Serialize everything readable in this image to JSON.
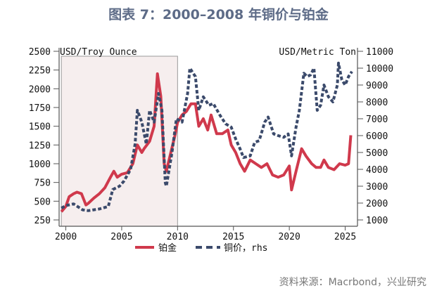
{
  "title": "图表 7：2000–2008 年铜价与铂金",
  "source": "资料来源：Macrbond，兴业研究",
  "chart_data": {
    "type": "line",
    "title": "图表 7：2000–2008 年铜价与铂金",
    "left_axis": {
      "label": "USD/Troy Ounce",
      "range": [
        250,
        2500
      ],
      "ticks": [
        250,
        500,
        750,
        1000,
        1250,
        1500,
        1750,
        2000,
        2250,
        2500
      ]
    },
    "right_axis": {
      "label": "USD/Metric Ton",
      "range": [
        1000,
        11000
      ],
      "ticks": [
        1000,
        2000,
        3000,
        4000,
        5000,
        6000,
        7000,
        8000,
        9000,
        10000,
        11000
      ]
    },
    "x_axis": {
      "range": [
        1999.4,
        2026.1
      ],
      "ticks": [
        2000,
        2005,
        2010,
        2015,
        2020,
        2025
      ]
    },
    "grid": false,
    "legend_position": "bottom",
    "shaded_period": [
      1999.6,
      2010
    ],
    "series": [
      {
        "name": "铂金",
        "axis": "left",
        "color": "#d0394c",
        "style": "solid",
        "x": [
          1999.6,
          2000.0,
          2000.3,
          2000.7,
          2001.0,
          2001.4,
          2001.8,
          2002.0,
          2002.5,
          2003.0,
          2003.5,
          2004.0,
          2004.3,
          2004.6,
          2005.0,
          2005.5,
          2006.0,
          2006.4,
          2006.8,
          2007.0,
          2007.5,
          2007.9,
          2008.2,
          2008.5,
          2008.8,
          2009.0,
          2009.4,
          2009.8,
          2010.0,
          2010.4,
          2010.8,
          2011.2,
          2011.6,
          2011.9,
          2012.3,
          2012.7,
          2013.0,
          2013.5,
          2014.0,
          2014.5,
          2014.8,
          2015.2,
          2015.6,
          2016.0,
          2016.5,
          2017.0,
          2017.5,
          2018.0,
          2018.5,
          2019.0,
          2019.5,
          2020.0,
          2020.2,
          2020.6,
          2021.1,
          2021.5,
          2022.0,
          2022.4,
          2022.8,
          2023.1,
          2023.5,
          2024.0,
          2024.5,
          2025.0,
          2025.3,
          2025.5
        ],
        "values": [
          360,
          430,
          560,
          600,
          620,
          600,
          450,
          470,
          540,
          600,
          680,
          820,
          900,
          820,
          860,
          880,
          1000,
          1250,
          1150,
          1200,
          1300,
          1500,
          2200,
          1900,
          1000,
          900,
          1150,
          1400,
          1550,
          1650,
          1700,
          1800,
          1800,
          1500,
          1600,
          1450,
          1650,
          1400,
          1400,
          1450,
          1250,
          1150,
          1000,
          900,
          1050,
          1000,
          950,
          1000,
          850,
          820,
          850,
          970,
          650,
          900,
          1200,
          1100,
          1000,
          950,
          950,
          1050,
          950,
          920,
          1000,
          980,
          1000,
          1380
        ]
      },
      {
        "name": "铜价，rhs",
        "axis": "right",
        "color": "#3b4a6b",
        "style": "dashed",
        "x": [
          1999.6,
          2000.0,
          2000.7,
          2001.5,
          2002.0,
          2002.5,
          2003.0,
          2003.8,
          2004.2,
          2004.8,
          2005.2,
          2005.8,
          2006.2,
          2006.4,
          2006.8,
          2007.2,
          2007.5,
          2007.9,
          2008.3,
          2008.6,
          2008.9,
          2009.0,
          2009.5,
          2009.9,
          2010.4,
          2010.9,
          2011.1,
          2011.6,
          2011.9,
          2012.3,
          2012.8,
          2013.2,
          2013.8,
          2014.3,
          2014.8,
          2015.2,
          2015.6,
          2015.9,
          2016.5,
          2016.9,
          2017.3,
          2017.8,
          2018.1,
          2018.6,
          2019.0,
          2019.5,
          2019.9,
          2020.2,
          2020.6,
          2020.9,
          2021.3,
          2021.6,
          2021.9,
          2022.2,
          2022.5,
          2022.8,
          2023.1,
          2023.5,
          2023.9,
          2024.3,
          2024.4,
          2024.7,
          2025.0,
          2025.3,
          2025.6
        ],
        "values": [
          1700,
          1850,
          1950,
          1600,
          1550,
          1600,
          1650,
          1800,
          2800,
          3000,
          3300,
          4000,
          5500,
          7500,
          6800,
          5500,
          7500,
          6800,
          8500,
          7500,
          3200,
          3000,
          5000,
          7000,
          6800,
          8500,
          10000,
          9500,
          7500,
          8300,
          7800,
          7900,
          7200,
          6700,
          6500,
          5800,
          5200,
          4700,
          4800,
          5600,
          5700,
          6800,
          7100,
          6100,
          6000,
          5900,
          6100,
          4800,
          6500,
          7500,
          9700,
          9500,
          9600,
          10000,
          7500,
          7800,
          9000,
          8300,
          8000,
          9000,
          10300,
          9300,
          9000,
          9500,
          9800
        ]
      }
    ],
    "legend": [
      "铂金",
      "铜价，rhs"
    ]
  }
}
